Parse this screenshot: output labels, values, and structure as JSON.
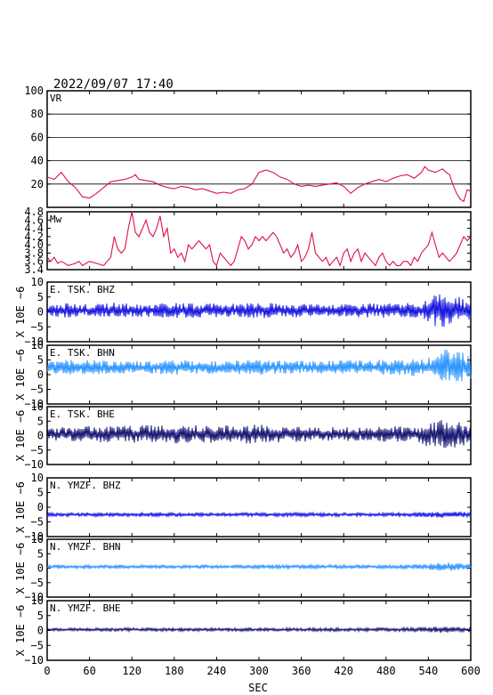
{
  "header": {
    "timestamp": "2022/09/07  17:40"
  },
  "x_axis": {
    "label": "SEC",
    "min": 0,
    "max": 600,
    "ticks": [
      0,
      60,
      120,
      180,
      240,
      300,
      360,
      420,
      480,
      540,
      600
    ],
    "tick_labels": [
      "0",
      "60",
      "120",
      "180",
      "240",
      "300",
      "360",
      "420",
      "480",
      "540",
      "600"
    ]
  },
  "shared_ylabel": "X 10E −6",
  "colors": {
    "frame": "#000000",
    "red": "#dd1144",
    "blue": "#0000dd",
    "lightblue": "#1a8cff",
    "navy": "#000066"
  },
  "chart_data": [
    {
      "type": "line",
      "panel": "VR",
      "ylim": [
        0,
        100
      ],
      "yticks": [
        20,
        40,
        60,
        80,
        100
      ],
      "ytick_labels": [
        "20",
        "40",
        "60",
        "80",
        "100"
      ],
      "grid": true,
      "color": "red",
      "points": [
        [
          0,
          26
        ],
        [
          10,
          24
        ],
        [
          20,
          30
        ],
        [
          30,
          22
        ],
        [
          40,
          17
        ],
        [
          50,
          9
        ],
        [
          60,
          8
        ],
        [
          70,
          12
        ],
        [
          80,
          17
        ],
        [
          90,
          22
        ],
        [
          100,
          23
        ],
        [
          110,
          24
        ],
        [
          120,
          26
        ],
        [
          125,
          28
        ],
        [
          130,
          24
        ],
        [
          140,
          23
        ],
        [
          150,
          22
        ],
        [
          160,
          19
        ],
        [
          170,
          17
        ],
        [
          180,
          16
        ],
        [
          190,
          18
        ],
        [
          200,
          17
        ],
        [
          210,
          15
        ],
        [
          220,
          16
        ],
        [
          230,
          14
        ],
        [
          240,
          12
        ],
        [
          250,
          13
        ],
        [
          260,
          12
        ],
        [
          270,
          15
        ],
        [
          280,
          16
        ],
        [
          290,
          20
        ],
        [
          300,
          30
        ],
        [
          310,
          32
        ],
        [
          320,
          30
        ],
        [
          330,
          26
        ],
        [
          340,
          24
        ],
        [
          350,
          20
        ],
        [
          360,
          18
        ],
        [
          370,
          19
        ],
        [
          380,
          18
        ],
        [
          390,
          19
        ],
        [
          400,
          20
        ],
        [
          410,
          21
        ],
        [
          420,
          18
        ],
        [
          430,
          12
        ],
        [
          440,
          17
        ],
        [
          450,
          20
        ],
        [
          460,
          22
        ],
        [
          470,
          24
        ],
        [
          480,
          22
        ],
        [
          490,
          25
        ],
        [
          500,
          27
        ],
        [
          510,
          28
        ],
        [
          520,
          25
        ],
        [
          530,
          30
        ],
        [
          535,
          35
        ],
        [
          540,
          32
        ],
        [
          550,
          30
        ],
        [
          560,
          33
        ],
        [
          565,
          30
        ],
        [
          570,
          28
        ],
        [
          575,
          19
        ],
        [
          580,
          12
        ],
        [
          585,
          7
        ],
        [
          590,
          5
        ],
        [
          595,
          15
        ],
        [
          600,
          14
        ]
      ]
    },
    {
      "type": "line",
      "panel": "Mw",
      "ylim": [
        3.4,
        4.8
      ],
      "yticks": [
        3.4,
        3.6,
        3.8,
        4.0,
        4.2,
        4.4,
        4.6,
        4.8
      ],
      "ytick_labels": [
        "3.4",
        "3.6",
        "3.8",
        "4.0",
        "4.2",
        "4.4",
        "4.6",
        "4.8"
      ],
      "grid": false,
      "color": "red",
      "points": [
        [
          0,
          3.7
        ],
        [
          5,
          3.6
        ],
        [
          10,
          3.7
        ],
        [
          15,
          3.55
        ],
        [
          20,
          3.6
        ],
        [
          30,
          3.5
        ],
        [
          40,
          3.55
        ],
        [
          45,
          3.6
        ],
        [
          50,
          3.5
        ],
        [
          55,
          3.55
        ],
        [
          60,
          3.6
        ],
        [
          70,
          3.55
        ],
        [
          80,
          3.5
        ],
        [
          85,
          3.6
        ],
        [
          90,
          3.7
        ],
        [
          95,
          4.2
        ],
        [
          100,
          3.9
        ],
        [
          105,
          3.8
        ],
        [
          110,
          3.9
        ],
        [
          115,
          4.4
        ],
        [
          120,
          4.8
        ],
        [
          125,
          4.3
        ],
        [
          130,
          4.2
        ],
        [
          135,
          4.4
        ],
        [
          140,
          4.6
        ],
        [
          145,
          4.3
        ],
        [
          150,
          4.2
        ],
        [
          155,
          4.4
        ],
        [
          160,
          4.7
        ],
        [
          165,
          4.2
        ],
        [
          170,
          4.4
        ],
        [
          175,
          3.8
        ],
        [
          180,
          3.9
        ],
        [
          185,
          3.7
        ],
        [
          190,
          3.8
        ],
        [
          195,
          3.6
        ],
        [
          200,
          4.0
        ],
        [
          205,
          3.9
        ],
        [
          210,
          4.0
        ],
        [
          215,
          4.1
        ],
        [
          220,
          4.0
        ],
        [
          225,
          3.9
        ],
        [
          230,
          4.0
        ],
        [
          235,
          3.6
        ],
        [
          240,
          3.5
        ],
        [
          245,
          3.8
        ],
        [
          250,
          3.7
        ],
        [
          255,
          3.6
        ],
        [
          260,
          3.5
        ],
        [
          265,
          3.6
        ],
        [
          270,
          3.9
        ],
        [
          275,
          4.2
        ],
        [
          280,
          4.1
        ],
        [
          285,
          3.9
        ],
        [
          290,
          4.0
        ],
        [
          295,
          4.2
        ],
        [
          300,
          4.1
        ],
        [
          305,
          4.2
        ],
        [
          310,
          4.1
        ],
        [
          315,
          4.2
        ],
        [
          320,
          4.3
        ],
        [
          325,
          4.2
        ],
        [
          330,
          4.0
        ],
        [
          335,
          3.8
        ],
        [
          340,
          3.9
        ],
        [
          345,
          3.7
        ],
        [
          350,
          3.8
        ],
        [
          355,
          4.0
        ],
        [
          360,
          3.6
        ],
        [
          365,
          3.7
        ],
        [
          370,
          3.9
        ],
        [
          375,
          4.3
        ],
        [
          380,
          3.8
        ],
        [
          385,
          3.7
        ],
        [
          390,
          3.6
        ],
        [
          395,
          3.7
        ],
        [
          400,
          3.5
        ],
        [
          405,
          3.6
        ],
        [
          410,
          3.7
        ],
        [
          415,
          3.5
        ],
        [
          420,
          3.8
        ],
        [
          425,
          3.9
        ],
        [
          430,
          3.6
        ],
        [
          435,
          3.8
        ],
        [
          440,
          3.9
        ],
        [
          445,
          3.6
        ],
        [
          450,
          3.8
        ],
        [
          455,
          3.7
        ],
        [
          460,
          3.6
        ],
        [
          465,
          3.5
        ],
        [
          470,
          3.7
        ],
        [
          475,
          3.8
        ],
        [
          480,
          3.6
        ],
        [
          485,
          3.5
        ],
        [
          490,
          3.6
        ],
        [
          495,
          3.5
        ],
        [
          500,
          3.5
        ],
        [
          505,
          3.6
        ],
        [
          510,
          3.6
        ],
        [
          515,
          3.5
        ],
        [
          520,
          3.7
        ],
        [
          525,
          3.6
        ],
        [
          530,
          3.8
        ],
        [
          535,
          3.9
        ],
        [
          540,
          4.0
        ],
        [
          545,
          4.3
        ],
        [
          550,
          4.0
        ],
        [
          555,
          3.7
        ],
        [
          560,
          3.8
        ],
        [
          565,
          3.7
        ],
        [
          570,
          3.6
        ],
        [
          575,
          3.7
        ],
        [
          580,
          3.8
        ],
        [
          585,
          4.0
        ],
        [
          590,
          4.2
        ],
        [
          595,
          4.1
        ],
        [
          600,
          4.2
        ]
      ]
    },
    {
      "type": "line",
      "panel": "E.TSK.BHZ",
      "label": "E. TSK. BHZ",
      "ylim": [
        -10,
        10
      ],
      "yticks": [
        -10,
        -5,
        0,
        5,
        10
      ],
      "ytick_labels": [
        "−10",
        "−5",
        "0",
        "5",
        "10"
      ],
      "color": "blue",
      "offset": 0.5,
      "envelope": [
        [
          0,
          2.2
        ],
        [
          30,
          2.5
        ],
        [
          60,
          2.0
        ],
        [
          90,
          2.8
        ],
        [
          120,
          2.3
        ],
        [
          180,
          2.5
        ],
        [
          240,
          2.4
        ],
        [
          300,
          2.6
        ],
        [
          360,
          2.4
        ],
        [
          420,
          2.2
        ],
        [
          480,
          2.5
        ],
        [
          530,
          2.5
        ],
        [
          540,
          4.5
        ],
        [
          555,
          6.0
        ],
        [
          575,
          5.0
        ],
        [
          600,
          3.5
        ]
      ]
    },
    {
      "type": "line",
      "panel": "E.TSK.BHN",
      "label": "E. TSK. BHN",
      "ylim": [
        -10,
        10
      ],
      "yticks": [
        -10,
        -5,
        0,
        5,
        10
      ],
      "ytick_labels": [
        "−10",
        "−5",
        "0",
        "5",
        "10"
      ],
      "color": "lightblue",
      "offset": 2.5,
      "envelope": [
        [
          0,
          2.5
        ],
        [
          60,
          2.5
        ],
        [
          120,
          2.2
        ],
        [
          180,
          2.5
        ],
        [
          240,
          2.3
        ],
        [
          300,
          2.6
        ],
        [
          360,
          2.2
        ],
        [
          420,
          2.4
        ],
        [
          480,
          2.6
        ],
        [
          530,
          3.0
        ],
        [
          545,
          4.5
        ],
        [
          560,
          6.5
        ],
        [
          575,
          5.5
        ],
        [
          600,
          4.5
        ]
      ]
    },
    {
      "type": "line",
      "panel": "E.TSK.BHE",
      "label": "E. TSK. BHE",
      "ylim": [
        -10,
        10
      ],
      "yticks": [
        -10,
        -5,
        0,
        5,
        10
      ],
      "ytick_labels": [
        "−10",
        "−5",
        "0",
        "5",
        "10"
      ],
      "color": "navy",
      "offset": 0.5,
      "envelope": [
        [
          0,
          2.2
        ],
        [
          60,
          2.8
        ],
        [
          120,
          3.0
        ],
        [
          180,
          3.2
        ],
        [
          240,
          3.0
        ],
        [
          300,
          3.3
        ],
        [
          360,
          2.6
        ],
        [
          420,
          2.4
        ],
        [
          480,
          2.6
        ],
        [
          530,
          3.0
        ],
        [
          540,
          5.0
        ],
        [
          560,
          5.5
        ],
        [
          580,
          4.5
        ],
        [
          600,
          3.5
        ]
      ]
    },
    {
      "type": "line",
      "panel": "N.YMZF.BHZ",
      "label": "N. YMZF. BHZ",
      "ylim": [
        -10,
        10
      ],
      "yticks": [
        -10,
        -5,
        0,
        5,
        10
      ],
      "ytick_labels": [
        "−10",
        "−5",
        "0",
        "5",
        "10"
      ],
      "color": "blue",
      "offset": -2.5,
      "envelope": [
        [
          0,
          0.6
        ],
        [
          120,
          0.7
        ],
        [
          240,
          0.6
        ],
        [
          360,
          0.7
        ],
        [
          480,
          0.6
        ],
        [
          530,
          0.8
        ],
        [
          560,
          1.1
        ],
        [
          600,
          0.9
        ]
      ]
    },
    {
      "type": "line",
      "panel": "N.YMZF.BHN",
      "label": "N. YMZF. BHN",
      "ylim": [
        -10,
        10
      ],
      "yticks": [
        -10,
        -5,
        0,
        5,
        10
      ],
      "ytick_labels": [
        "−10",
        "−5",
        "0",
        "5",
        "10"
      ],
      "color": "lightblue",
      "offset": 0.5,
      "envelope": [
        [
          0,
          0.6
        ],
        [
          120,
          0.6
        ],
        [
          240,
          0.6
        ],
        [
          360,
          0.7
        ],
        [
          480,
          0.6
        ],
        [
          530,
          0.9
        ],
        [
          565,
          1.5
        ],
        [
          600,
          1.0
        ]
      ]
    },
    {
      "type": "line",
      "panel": "N.YMZF.BHE",
      "label": "N. YMZF. BHE",
      "ylim": [
        -10,
        10
      ],
      "yticks": [
        -10,
        -5,
        0,
        5,
        10
      ],
      "ytick_labels": [
        "−10",
        "−5",
        "0",
        "5",
        "10"
      ],
      "color": "navy",
      "offset": 0.3,
      "envelope": [
        [
          0,
          0.5
        ],
        [
          120,
          0.6
        ],
        [
          240,
          0.6
        ],
        [
          360,
          0.6
        ],
        [
          480,
          0.6
        ],
        [
          530,
          0.8
        ],
        [
          560,
          1.1
        ],
        [
          600,
          0.8
        ]
      ]
    }
  ]
}
